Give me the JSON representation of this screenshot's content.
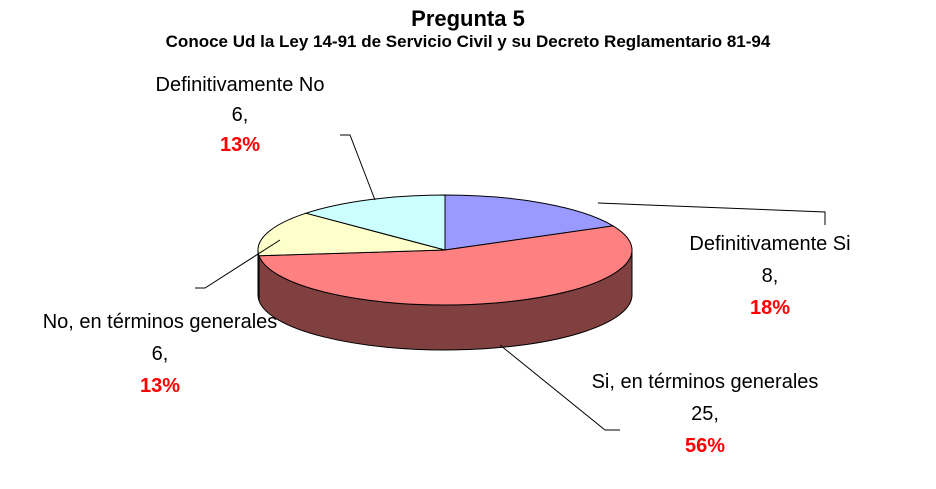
{
  "chart_data": {
    "type": "pie3d",
    "title": "Pregunta 5",
    "subtitle": "Conoce Ud la Ley 14-91 de Servicio Civil y su Decreto Reglamentario 81-94",
    "categories": [
      "Definitivamente Si",
      "Si, en términos generales",
      "No, en términos generales",
      "Definitivamente No"
    ],
    "values": [
      8,
      25,
      6,
      6
    ],
    "value_labels": [
      "8,",
      "25,",
      "6,",
      "6,"
    ],
    "percent_labels": [
      "18%",
      "56%",
      "13%",
      "13%"
    ],
    "colors": [
      "#9999ff",
      "#ff8080",
      "#ffffcc",
      "#ccffff"
    ],
    "side_colors": [
      "#4d4d80",
      "#804040",
      "#808066",
      "#668080"
    ]
  }
}
